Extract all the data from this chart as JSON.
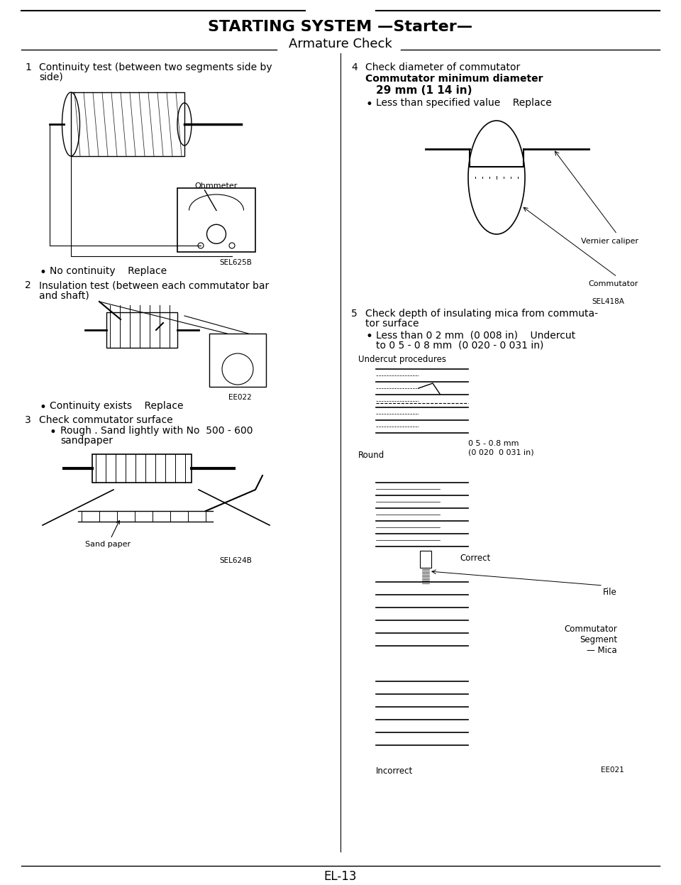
{
  "title": "STARTING SYSTEM —Starter—",
  "subtitle": "Armature Check",
  "page_number": "EL-13",
  "bg_color": "#ffffff",
  "text_color": "#000000",
  "title_fontsize": 16,
  "subtitle_fontsize": 13,
  "body_fontsize": 10,
  "left_column": [
    {
      "number": "1",
      "heading": "Continuity test (between two segments side by\nside)",
      "image_placeholder": "armature_ohmmeter",
      "image_label": "Ohmmeter",
      "image_code": "SEL625B",
      "bullets": [
        "No continuity    Replace"
      ]
    },
    {
      "number": "2",
      "heading": "Insulation test (between each commutator bar\nand shaft)",
      "image_placeholder": "probes_multimeter",
      "image_code": "EE022",
      "bullets": [
        "Continuity exists    Replace"
      ]
    },
    {
      "number": "3",
      "heading": "Check commutator surface",
      "bullets": [
        "Rough . Sand lightly with No  500 - 600\nsandpaper"
      ],
      "image_placeholder": "sandpaper",
      "image_label": "Sand paper",
      "image_code": "SEL624B"
    }
  ],
  "right_column": [
    {
      "number": "4",
      "heading": "Check diameter of commutator",
      "bold_text": "Commutator minimum diameter\n    29 mm (1 14 in)",
      "bullets": [
        "Less than specified value    Replace"
      ],
      "image_placeholder": "caliper_commutator",
      "image_label_1": "Vernier caliper",
      "image_label_2": "Commutator",
      "image_code": "SEL418A"
    },
    {
      "number": "5",
      "heading": "Check depth of insulating mica from commuta-\ntor surface",
      "bullets": [
        "Less than 0 2 mm  (0 008 in)    Undercut\nto 0 5 - 0 8 mm  (0 020 - 0 031 in)"
      ],
      "undercut_label": "Undercut procedures",
      "round_label": "Round",
      "dim_label": "0 5 - 0.8 mm\n(0 020  0 031 in)",
      "correct_label": "Correct",
      "file_label": "File",
      "commutator_label": "Commutator",
      "segment_label": "Segment",
      "mica_label": "Mica",
      "incorrect_label": "Incorrect",
      "image_code": "EE021"
    }
  ]
}
